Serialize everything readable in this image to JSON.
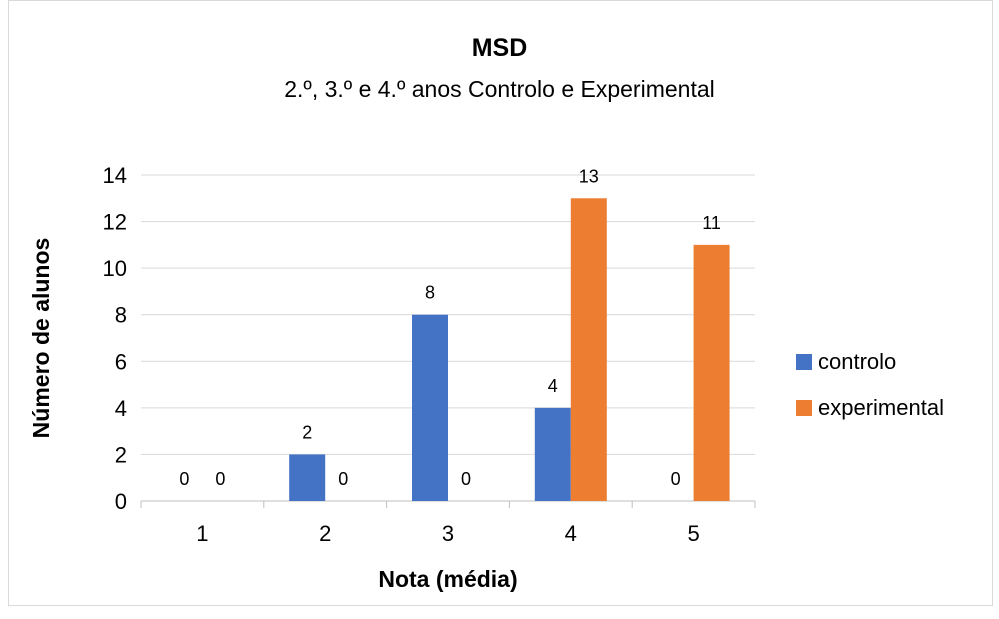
{
  "chart_data": {
    "type": "bar",
    "title": "MSD",
    "subtitle": "2.º, 3.º e 4.º anos Controlo e Experimental",
    "xlabel": "Nota (média)",
    "ylabel": "Número de alunos",
    "categories": [
      "1",
      "2",
      "3",
      "4",
      "5"
    ],
    "ylim": [
      0,
      14
    ],
    "yticks": [
      "0",
      "2",
      "4",
      "6",
      "8",
      "10",
      "12",
      "14"
    ],
    "grid": true,
    "legend_position": "right",
    "series": [
      {
        "name": "controlo",
        "color": "#4472c4",
        "values": [
          0,
          2,
          8,
          4,
          0
        ]
      },
      {
        "name": "experimental",
        "color": "#ed7d31",
        "values": [
          0,
          0,
          0,
          13,
          11
        ]
      }
    ]
  }
}
